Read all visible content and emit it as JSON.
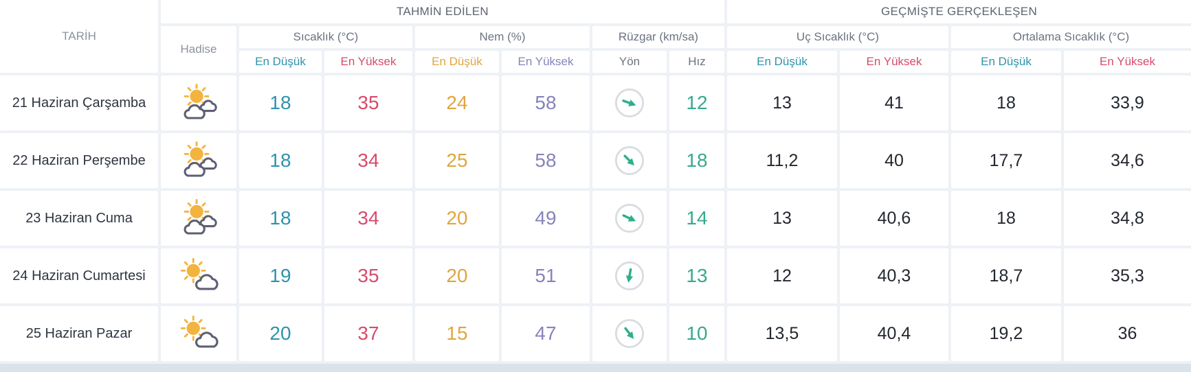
{
  "header": {
    "forecast_group": "TAHMİN EDİLEN",
    "past_group": "GEÇMİŞTE GERÇEKLEŞEN",
    "date_col": "TARİH",
    "condition_col": "Hadise",
    "groups": {
      "temperature": "Sıcaklık (°C)",
      "humidity": "Nem (%)",
      "wind": "Rüzgar (km/sa)",
      "extreme_temperature": "Uç Sıcaklık (°C)",
      "average_temperature": "Ortalama Sıcaklık (°C)"
    },
    "sub": {
      "min": "En Düşük",
      "max": "En Yüksek",
      "direction": "Yön",
      "speed": "Hız"
    }
  },
  "colors": {
    "page_bg": "#eef1f5",
    "bottom_strip": "#dbe3ea",
    "top_header_text": "#5d6470",
    "group_header_text": "#6b7380",
    "muted_header_text": "#8b919e",
    "date_text": "#2e3440",
    "past_number_text": "#23272f",
    "temp_min": "#2e93ad",
    "temp_max": "#d84a6b",
    "hum_min": "#dfa53f",
    "hum_max": "#8683ba",
    "wind_speed": "#36a98d",
    "wind_arrow": "#2fae8b",
    "wind_circle": "#d9dde1",
    "sun": "#f2b43e",
    "cloud_outline": "#5d5f73"
  },
  "rows": [
    {
      "date": "21 Haziran Çarşamba",
      "condition_icon": "sun-behind-two-clouds",
      "temp_min": "18",
      "temp_max": "35",
      "hum_min": "24",
      "hum_max": "58",
      "wind_direction_deg": 20,
      "wind_speed": "12",
      "ext_min": "13",
      "ext_max": "41",
      "avg_min": "18",
      "avg_max": "33,9"
    },
    {
      "date": "22 Haziran Perşembe",
      "condition_icon": "sun-behind-two-clouds",
      "temp_min": "18",
      "temp_max": "34",
      "hum_min": "25",
      "hum_max": "58",
      "wind_direction_deg": 45,
      "wind_speed": "18",
      "ext_min": "11,2",
      "ext_max": "40",
      "avg_min": "17,7",
      "avg_max": "34,6"
    },
    {
      "date": "23 Haziran Cuma",
      "condition_icon": "sun-behind-two-clouds",
      "temp_min": "18",
      "temp_max": "34",
      "hum_min": "20",
      "hum_max": "49",
      "wind_direction_deg": 25,
      "wind_speed": "14",
      "ext_min": "13",
      "ext_max": "40,6",
      "avg_min": "18",
      "avg_max": "34,8"
    },
    {
      "date": "24 Haziran Cumartesi",
      "condition_icon": "sun-with-cloud",
      "temp_min": "19",
      "temp_max": "35",
      "hum_min": "20",
      "hum_max": "51",
      "wind_direction_deg": 100,
      "wind_speed": "13",
      "ext_min": "12",
      "ext_max": "40,3",
      "avg_min": "18,7",
      "avg_max": "35,3"
    },
    {
      "date": "25 Haziran Pazar",
      "condition_icon": "sun-with-cloud",
      "temp_min": "20",
      "temp_max": "37",
      "hum_min": "15",
      "hum_max": "47",
      "wind_direction_deg": 52,
      "wind_speed": "10",
      "ext_min": "13,5",
      "ext_max": "40,4",
      "avg_min": "19,2",
      "avg_max": "36"
    }
  ]
}
